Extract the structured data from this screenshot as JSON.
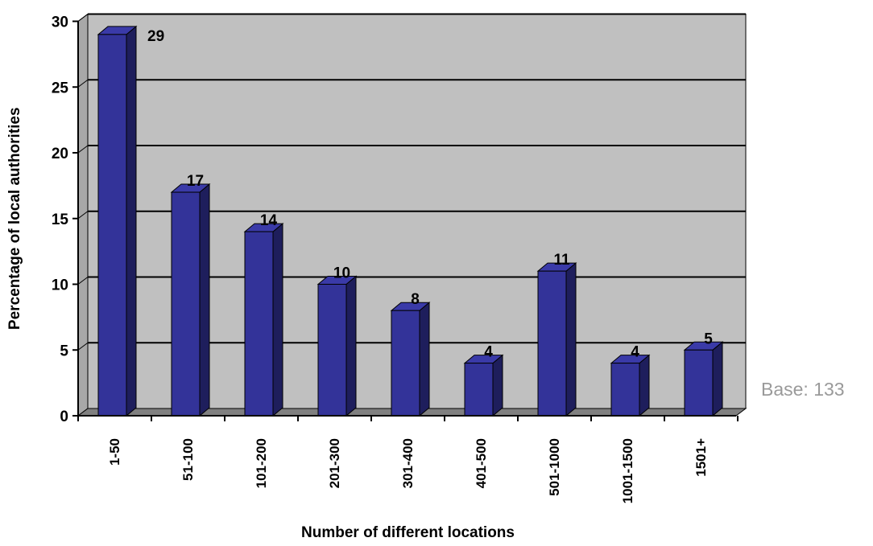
{
  "chart_data": {
    "type": "bar",
    "style": "3d-column",
    "categories": [
      "1-50",
      "51-100",
      "101-200",
      "201-300",
      "301-400",
      "401-500",
      "501-1000",
      "1001-1500",
      "1501+"
    ],
    "values": [
      29,
      17,
      14,
      10,
      8,
      4,
      11,
      4,
      5
    ],
    "data_labels": [
      "29",
      "17",
      "14",
      "10",
      "8",
      "4",
      "11",
      "4",
      "5"
    ],
    "xlabel": "Number of different locations",
    "ylabel": "Percentage of local authorities",
    "ylim": [
      0,
      30
    ],
    "yticks": [
      0,
      5,
      10,
      15,
      20,
      25,
      30
    ],
    "grid": true,
    "legend": "none",
    "note": "Base: 133",
    "colors": {
      "bar_front": "#333399",
      "bar_side": "#1e1e5c",
      "bar_top": "#3a3aa8",
      "plot_back": "#c0c0c0",
      "plot_floor": "#808080",
      "gridline": "#000000"
    }
  }
}
